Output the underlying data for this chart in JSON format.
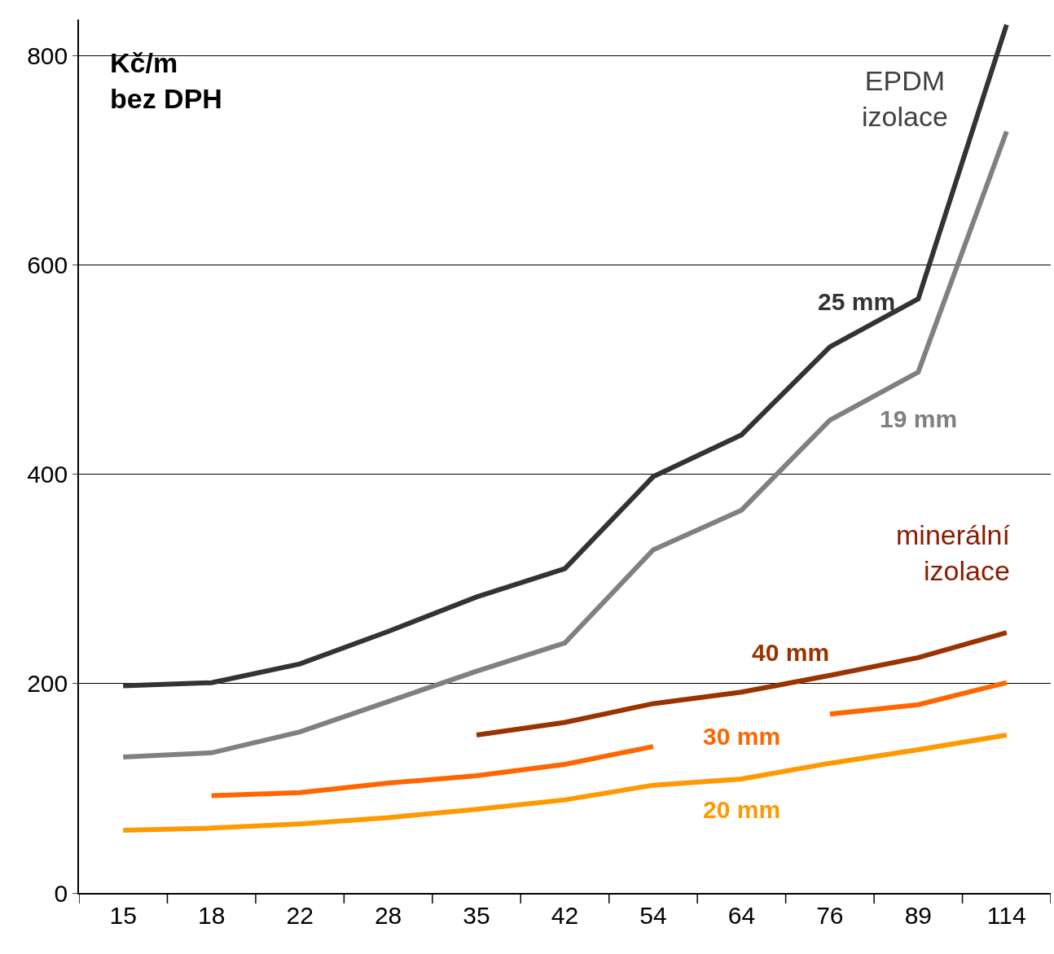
{
  "chart_data": {
    "type": "line",
    "categories": [
      "15",
      "18",
      "22",
      "28",
      "35",
      "42",
      "54",
      "64",
      "76",
      "89",
      "114"
    ],
    "series": [
      {
        "name": "25 mm",
        "color": "#333333",
        "values": [
          198,
          201,
          219,
          250,
          283,
          310,
          398,
          438,
          522,
          568,
          830
        ]
      },
      {
        "name": "19 mm",
        "color": "#808080",
        "values": [
          130,
          134,
          154,
          183,
          212,
          239,
          328,
          366,
          452,
          498,
          728
        ]
      },
      {
        "name": "40 mm",
        "color": "#993300",
        "values": [
          null,
          null,
          null,
          null,
          151,
          163,
          181,
          192,
          208,
          225,
          249
        ]
      },
      {
        "name": "30 mm",
        "color": "#ff6600",
        "values": [
          null,
          93,
          96,
          105,
          112,
          123,
          140,
          null,
          171,
          180,
          201
        ]
      },
      {
        "name": "20 mm",
        "color": "#ff9900",
        "values": [
          60,
          62,
          66,
          72,
          80,
          89,
          103,
          109,
          124,
          137,
          151
        ]
      }
    ],
    "ylim": [
      0,
      835
    ],
    "yticks": [
      0,
      200,
      400,
      600,
      800
    ],
    "grid": "y",
    "legend": false,
    "marker": "none",
    "line_style": "solid",
    "annotations": [
      "Kč/m\nbez DPH",
      "EPDM\nizolace",
      "minerální\nizolace"
    ]
  }
}
